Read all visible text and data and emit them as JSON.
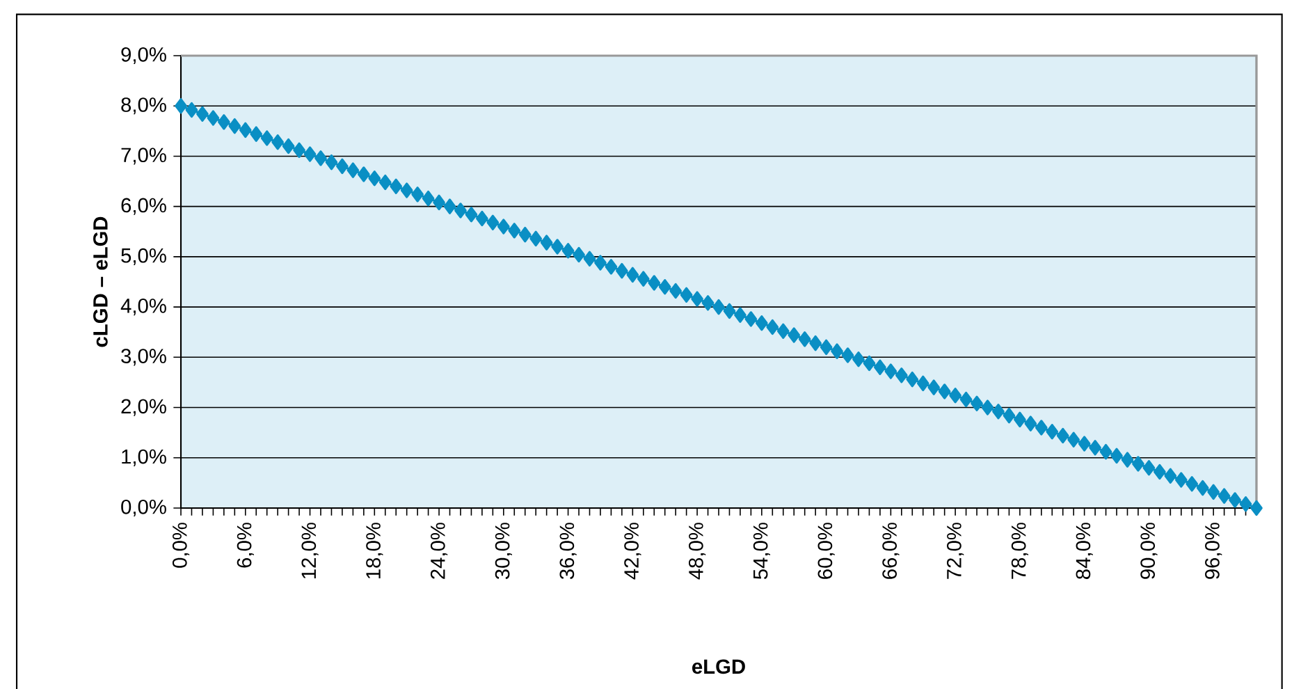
{
  "chart_data": {
    "type": "line",
    "xlabel": "eLGD",
    "ylabel": "cLGD – eLGD",
    "x": [
      0,
      1,
      2,
      3,
      4,
      5,
      6,
      7,
      8,
      9,
      10,
      11,
      12,
      13,
      14,
      15,
      16,
      17,
      18,
      19,
      20,
      21,
      22,
      23,
      24,
      25,
      26,
      27,
      28,
      29,
      30,
      31,
      32,
      33,
      34,
      35,
      36,
      37,
      38,
      39,
      40,
      41,
      42,
      43,
      44,
      45,
      46,
      47,
      48,
      49,
      50,
      51,
      52,
      53,
      54,
      55,
      56,
      57,
      58,
      59,
      60,
      61,
      62,
      63,
      64,
      65,
      66,
      67,
      68,
      69,
      70,
      71,
      72,
      73,
      74,
      75,
      76,
      77,
      78,
      79,
      80,
      81,
      82,
      83,
      84,
      85,
      86,
      87,
      88,
      89,
      90,
      91,
      92,
      93,
      94,
      95,
      96,
      97,
      98,
      99,
      100
    ],
    "series": [
      {
        "color": "#0a8fc4",
        "values": [
          8,
          7.92,
          7.84,
          7.76,
          7.68,
          7.6,
          7.52,
          7.44,
          7.36,
          7.28,
          7.2,
          7.12,
          7.04,
          6.96,
          6.88,
          6.8,
          6.72,
          6.64,
          6.56,
          6.48,
          6.4,
          6.32,
          6.24,
          6.16,
          6.08,
          6,
          5.92,
          5.84,
          5.76,
          5.68,
          5.6,
          5.52,
          5.44,
          5.36,
          5.28,
          5.2,
          5.12,
          5.04,
          4.96,
          4.88,
          4.8,
          4.72,
          4.64,
          4.56,
          4.48,
          4.4,
          4.32,
          4.24,
          4.16,
          4.08,
          4,
          3.92,
          3.84,
          3.76,
          3.68,
          3.6,
          3.52,
          3.44,
          3.36,
          3.28,
          3.2,
          3.12,
          3.04,
          2.96,
          2.88,
          2.8,
          2.72,
          2.64,
          2.56,
          2.48,
          2.4,
          2.32,
          2.24,
          2.16,
          2.08,
          2,
          1.92,
          1.84,
          1.76,
          1.68,
          1.6,
          1.52,
          1.44,
          1.36,
          1.28,
          1.2,
          1.12,
          1.04,
          0.96,
          0.88,
          0.8,
          0.72,
          0.64,
          0.56,
          0.48,
          0.4,
          0.32,
          0.24,
          0.16,
          0.08,
          0
        ]
      }
    ],
    "xlim": [
      0,
      100
    ],
    "ylim": [
      0,
      9
    ],
    "xticks": [
      {
        "value": 0,
        "label": "0,0%"
      },
      {
        "value": 1,
        "label": null
      },
      {
        "value": 2,
        "label": null
      },
      {
        "value": 3,
        "label": null
      },
      {
        "value": 4,
        "label": null
      },
      {
        "value": 5,
        "label": null
      },
      {
        "value": 6,
        "label": "6,0%"
      },
      {
        "value": 7,
        "label": null
      },
      {
        "value": 8,
        "label": null
      },
      {
        "value": 9,
        "label": null
      },
      {
        "value": 10,
        "label": null
      },
      {
        "value": 11,
        "label": null
      },
      {
        "value": 12,
        "label": "12,0%"
      },
      {
        "value": 13,
        "label": null
      },
      {
        "value": 14,
        "label": null
      },
      {
        "value": 15,
        "label": null
      },
      {
        "value": 16,
        "label": null
      },
      {
        "value": 17,
        "label": null
      },
      {
        "value": 18,
        "label": "18,0%"
      },
      {
        "value": 19,
        "label": null
      },
      {
        "value": 20,
        "label": null
      },
      {
        "value": 21,
        "label": null
      },
      {
        "value": 22,
        "label": null
      },
      {
        "value": 23,
        "label": null
      },
      {
        "value": 24,
        "label": "24,0%"
      },
      {
        "value": 25,
        "label": null
      },
      {
        "value": 26,
        "label": null
      },
      {
        "value": 27,
        "label": null
      },
      {
        "value": 28,
        "label": null
      },
      {
        "value": 29,
        "label": null
      },
      {
        "value": 30,
        "label": "30,0%"
      },
      {
        "value": 31,
        "label": null
      },
      {
        "value": 32,
        "label": null
      },
      {
        "value": 33,
        "label": null
      },
      {
        "value": 34,
        "label": null
      },
      {
        "value": 35,
        "label": null
      },
      {
        "value": 36,
        "label": "36,0%"
      },
      {
        "value": 37,
        "label": null
      },
      {
        "value": 38,
        "label": null
      },
      {
        "value": 39,
        "label": null
      },
      {
        "value": 40,
        "label": null
      },
      {
        "value": 41,
        "label": null
      },
      {
        "value": 42,
        "label": "42,0%"
      },
      {
        "value": 43,
        "label": null
      },
      {
        "value": 44,
        "label": null
      },
      {
        "value": 45,
        "label": null
      },
      {
        "value": 46,
        "label": null
      },
      {
        "value": 47,
        "label": null
      },
      {
        "value": 48,
        "label": "48,0%"
      },
      {
        "value": 49,
        "label": null
      },
      {
        "value": 50,
        "label": null
      },
      {
        "value": 51,
        "label": null
      },
      {
        "value": 52,
        "label": null
      },
      {
        "value": 53,
        "label": null
      },
      {
        "value": 54,
        "label": "54,0%"
      },
      {
        "value": 55,
        "label": null
      },
      {
        "value": 56,
        "label": null
      },
      {
        "value": 57,
        "label": null
      },
      {
        "value": 58,
        "label": null
      },
      {
        "value": 59,
        "label": null
      },
      {
        "value": 60,
        "label": "60,0%"
      },
      {
        "value": 61,
        "label": null
      },
      {
        "value": 62,
        "label": null
      },
      {
        "value": 63,
        "label": null
      },
      {
        "value": 64,
        "label": null
      },
      {
        "value": 65,
        "label": null
      },
      {
        "value": 66,
        "label": "66,0%"
      },
      {
        "value": 67,
        "label": null
      },
      {
        "value": 68,
        "label": null
      },
      {
        "value": 69,
        "label": null
      },
      {
        "value": 70,
        "label": null
      },
      {
        "value": 71,
        "label": null
      },
      {
        "value": 72,
        "label": "72,0%"
      },
      {
        "value": 73,
        "label": null
      },
      {
        "value": 74,
        "label": null
      },
      {
        "value": 75,
        "label": null
      },
      {
        "value": 76,
        "label": null
      },
      {
        "value": 77,
        "label": null
      },
      {
        "value": 78,
        "label": "78,0%"
      },
      {
        "value": 79,
        "label": null
      },
      {
        "value": 80,
        "label": null
      },
      {
        "value": 81,
        "label": null
      },
      {
        "value": 82,
        "label": null
      },
      {
        "value": 83,
        "label": null
      },
      {
        "value": 84,
        "label": "84,0%"
      },
      {
        "value": 85,
        "label": null
      },
      {
        "value": 86,
        "label": null
      },
      {
        "value": 87,
        "label": null
      },
      {
        "value": 88,
        "label": null
      },
      {
        "value": 89,
        "label": null
      },
      {
        "value": 90,
        "label": "90,0%"
      },
      {
        "value": 91,
        "label": null
      },
      {
        "value": 92,
        "label": null
      },
      {
        "value": 93,
        "label": null
      },
      {
        "value": 94,
        "label": null
      },
      {
        "value": 95,
        "label": null
      },
      {
        "value": 96,
        "label": "96,0%"
      },
      {
        "value": 97,
        "label": null
      },
      {
        "value": 98,
        "label": null
      },
      {
        "value": 99,
        "label": null
      },
      {
        "value": 100,
        "label": null
      }
    ],
    "yticks": [
      {
        "value": 0,
        "label": "0,0%"
      },
      {
        "value": 1,
        "label": "1,0%"
      },
      {
        "value": 2,
        "label": "2,0%"
      },
      {
        "value": 3,
        "label": "3,0%"
      },
      {
        "value": 4,
        "label": "4,0%"
      },
      {
        "value": 5,
        "label": "5,0%"
      },
      {
        "value": 6,
        "label": "6,0%"
      },
      {
        "value": 7,
        "label": "7,0%"
      },
      {
        "value": 8,
        "label": "8,0%"
      },
      {
        "value": 9,
        "label": "9,0%"
      }
    ],
    "grid": "y",
    "marker": "diamond",
    "line_style": "solid"
  }
}
